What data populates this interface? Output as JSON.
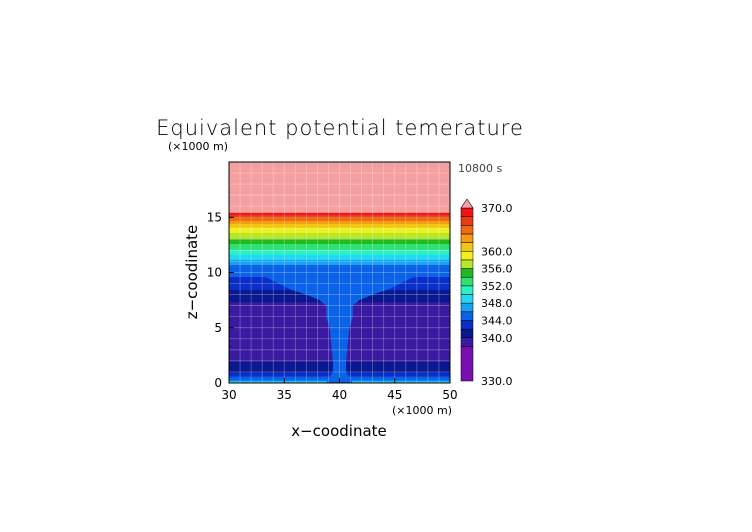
{
  "chart_data": {
    "type": "heatmap",
    "title": "Equivalent potential temerature",
    "xlabel": "x−coodinate",
    "ylabel": "z−coodinate",
    "x_unit": "(×1000 m)",
    "y_unit": "(×1000 m)",
    "time_label": "10800 s",
    "xlim": [
      30,
      50
    ],
    "ylim": [
      0,
      20
    ],
    "x_ticks": [
      "30",
      "35",
      "40",
      "45",
      "50"
    ],
    "y_ticks": [
      "0",
      "5",
      "10",
      "15"
    ],
    "grid": true,
    "colorbar": {
      "levels": [
        330,
        338,
        340,
        342,
        344,
        346,
        348,
        350,
        352,
        354,
        356,
        358,
        360,
        362,
        364,
        366,
        368,
        370
      ],
      "colors": [
        "#7a0fb0",
        "#3a1aa0",
        "#0a1890",
        "#0a2fc8",
        "#0a62e6",
        "#1aa0f0",
        "#22d8f0",
        "#2af0c8",
        "#30e070",
        "#22b822",
        "#b8e628",
        "#f0f01e",
        "#f0c814",
        "#f59a14",
        "#f06a14",
        "#e63c14",
        "#f01414",
        "#f5a0a0"
      ],
      "tick_labels": [
        "370.0",
        "360.0",
        "356.0",
        "352.0",
        "348.0",
        "344.0",
        "340.0",
        "330.0"
      ],
      "tick_values": [
        370,
        360,
        356,
        352,
        348,
        344,
        340,
        330
      ],
      "extend": "max"
    },
    "profile_z": [
      0,
      0.3,
      0.6,
      1.0,
      1.5,
      2.0,
      2.5,
      3.0,
      4.0,
      5.0,
      6.0,
      7.0,
      8.0,
      9.0,
      10.0,
      10.5,
      11.0,
      11.5,
      12.0,
      12.5,
      13.0,
      13.5,
      14.0,
      14.5,
      15.0,
      15.5,
      16.0,
      20.0
    ],
    "profile_theta": [
      350,
      346,
      344,
      342,
      341,
      340,
      339.5,
      339,
      338.5,
      338.5,
      339,
      339.5,
      341,
      343,
      344.5,
      345,
      347,
      349.5,
      351.5,
      353.5,
      355.5,
      357.5,
      359.5,
      362,
      366,
      370,
      371,
      372
    ],
    "plume": {
      "center_x": 40,
      "z": [
        0,
        1,
        2,
        3,
        4,
        5,
        6,
        7,
        7.5,
        8,
        8.5,
        9,
        9.5,
        10
      ],
      "half_width": [
        1.2,
        0.6,
        0.6,
        0.7,
        0.8,
        0.9,
        1.2,
        1.2,
        1.8,
        3.0,
        4.5,
        5.5,
        6.5,
        8.0
      ],
      "theta": 344
    }
  }
}
